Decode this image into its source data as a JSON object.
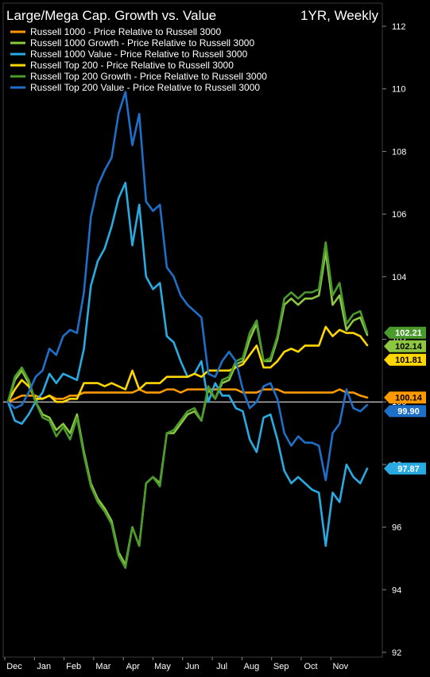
{
  "chart_data": {
    "type": "line",
    "title": "Large/Mega Cap. Growth vs. Value",
    "subtitle": "1YR, Weekly",
    "ylim": [
      92,
      112
    ],
    "y_ticks": [
      "92",
      "94",
      "96",
      "98",
      "100",
      "102",
      "104",
      "106",
      "108",
      "110",
      "112"
    ],
    "x_labels": [
      "Dec",
      "Jan",
      "Feb",
      "Mar",
      "Apr",
      "May",
      "Jun",
      "Jul",
      "Aug",
      "Sep",
      "Oct",
      "Nov"
    ],
    "baseline": 100,
    "grid": false,
    "legend_position": "top-left",
    "series": [
      {
        "name": "Russell 1000 - Price Relative to Russell 3000",
        "color": "#ff9900",
        "last_label": "100.14",
        "values": [
          100.0,
          100.1,
          100.2,
          100.2,
          100.2,
          100.1,
          100.2,
          100.1,
          100.1,
          100.2,
          100.2,
          100.3,
          100.3,
          100.3,
          100.3,
          100.3,
          100.3,
          100.3,
          100.3,
          100.4,
          100.3,
          100.3,
          100.3,
          100.4,
          100.4,
          100.3,
          100.4,
          100.4,
          100.4,
          100.4,
          100.4,
          100.4,
          100.4,
          100.4,
          100.3,
          100.3,
          100.3,
          100.4,
          100.4,
          100.4,
          100.3,
          100.3,
          100.3,
          100.3,
          100.3,
          100.3,
          100.3,
          100.3,
          100.4,
          100.3,
          100.3,
          100.2,
          100.14
        ]
      },
      {
        "name": "Russell 1000 Growth - Price Relative to Russell 3000",
        "color": "#8dc63f",
        "last_label": "102.14",
        "values": [
          100.0,
          100.7,
          101.0,
          100.6,
          100.0,
          99.6,
          99.5,
          99.1,
          99.3,
          99.0,
          99.6,
          98.4,
          97.4,
          96.9,
          96.6,
          96.2,
          95.2,
          94.8,
          96.0,
          95.4,
          97.4,
          97.6,
          97.4,
          99.0,
          99.0,
          99.3,
          99.6,
          99.7,
          99.4,
          100.4,
          100.1,
          100.6,
          100.7,
          101.2,
          101.3,
          102.0,
          102.5,
          101.3,
          101.3,
          102.0,
          103.1,
          103.3,
          103.1,
          103.3,
          103.3,
          103.4,
          104.8,
          103.1,
          103.4,
          102.3,
          102.6,
          102.7,
          102.14
        ]
      },
      {
        "name": "Russell 1000 Value - Price Relative to Russell 3000",
        "color": "#29abe2",
        "last_label": "97.87",
        "values": [
          100.0,
          99.4,
          99.3,
          99.6,
          100.0,
          100.3,
          100.9,
          100.6,
          100.9,
          100.8,
          100.7,
          101.7,
          103.7,
          104.5,
          104.9,
          105.6,
          106.5,
          107.0,
          105.0,
          106.3,
          104.0,
          103.6,
          103.8,
          102.1,
          101.9,
          101.3,
          100.8,
          100.9,
          101.3,
          100.0,
          100.6,
          100.2,
          100.2,
          99.8,
          99.7,
          98.8,
          98.4,
          99.5,
          99.6,
          98.8,
          97.8,
          97.4,
          97.6,
          97.4,
          97.2,
          97.1,
          95.4,
          97.1,
          96.8,
          98.0,
          97.6,
          97.4,
          97.87
        ]
      },
      {
        "name": "Russell Top 200 - Price Relative to Russell 3000",
        "color": "#ffd700",
        "last_label": "101.81",
        "values": [
          100.0,
          100.4,
          100.7,
          100.5,
          100.1,
          100.1,
          100.2,
          100.0,
          100.0,
          100.1,
          100.1,
          100.6,
          100.6,
          100.6,
          100.5,
          100.6,
          100.5,
          100.4,
          101.0,
          100.4,
          100.6,
          100.6,
          100.6,
          100.8,
          100.8,
          100.8,
          100.8,
          100.9,
          100.8,
          101.0,
          101.0,
          101.0,
          101.0,
          101.1,
          101.2,
          101.5,
          101.8,
          101.1,
          101.1,
          101.3,
          101.6,
          101.7,
          101.6,
          101.8,
          101.8,
          101.8,
          102.4,
          102.1,
          102.3,
          102.2,
          102.2,
          102.1,
          101.81
        ]
      },
      {
        "name": "Russell Top 200 Growth - Price Relative to Russell 3000",
        "color": "#4a9a2c",
        "last_label": "102.21",
        "values": [
          100.0,
          100.8,
          101.1,
          100.7,
          100.0,
          99.5,
          99.4,
          98.9,
          99.2,
          98.8,
          99.5,
          98.3,
          97.3,
          96.8,
          96.5,
          96.1,
          95.1,
          94.7,
          96.0,
          95.4,
          97.4,
          97.6,
          97.3,
          99.0,
          99.1,
          99.4,
          99.7,
          99.8,
          99.4,
          100.5,
          100.1,
          100.7,
          100.8,
          101.3,
          101.4,
          102.2,
          102.6,
          101.3,
          101.4,
          102.1,
          103.3,
          103.5,
          103.3,
          103.5,
          103.5,
          103.6,
          105.1,
          103.4,
          103.8,
          102.5,
          102.8,
          102.9,
          102.21
        ]
      },
      {
        "name": "Russell Top 200 Value - Price Relative to Russell 3000",
        "color": "#1e6fc8",
        "last_label": "99.90",
        "values": [
          100.0,
          99.8,
          99.9,
          100.3,
          100.8,
          101.0,
          101.7,
          101.5,
          102.1,
          102.3,
          102.2,
          103.5,
          105.9,
          106.9,
          107.4,
          107.8,
          109.2,
          109.9,
          108.2,
          109.2,
          106.4,
          106.1,
          106.3,
          104.3,
          104.0,
          103.4,
          103.1,
          102.9,
          102.7,
          100.9,
          100.8,
          101.3,
          101.6,
          101.3,
          100.4,
          99.8,
          100.0,
          100.5,
          100.6,
          100.1,
          99.0,
          98.6,
          98.9,
          98.7,
          98.7,
          98.6,
          97.5,
          99.0,
          99.3,
          100.4,
          99.8,
          99.7,
          99.9
        ]
      }
    ]
  }
}
